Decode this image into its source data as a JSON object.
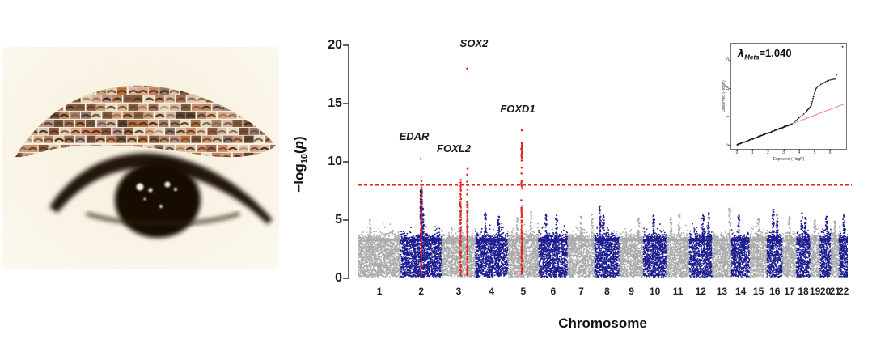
{
  "left_panel": {
    "description": "collage of many small eyebrow photos arranged in an eyebrow arc above a blurred dark human eye",
    "background": "#f9f4e6",
    "tile_palette": [
      "#c87d5e",
      "#8a5a44",
      "#d9a886",
      "#e8c9a8",
      "#b0713f",
      "#5a4632",
      "#927b62",
      "#d7b7a0",
      "#c99b7a",
      "#e5d4b5",
      "#a9846a",
      "#815b3c",
      "#b5928a",
      "#ddc2ae",
      "#9c6b50",
      "#caa17e",
      "#76513b",
      "#e0b490",
      "#b98a64",
      "#8f7a6b",
      "#cf8f6a",
      "#ead8bf"
    ],
    "brow_dark": "#3a2818",
    "eye_dark": "#1b1209",
    "highlight": "#fffdf4"
  },
  "chart_data": [
    {
      "type": "scatter",
      "variant": "manhattan",
      "xlabel": "Chromosome",
      "ylabel_parts": {
        "pre": "−log",
        "sub": "10",
        "open": "(",
        "var": "p",
        "close": ")"
      },
      "ylim": [
        0,
        20
      ],
      "yticks": [
        0,
        5,
        10,
        15,
        20
      ],
      "significance_line": 8,
      "legend": "none",
      "grid": false,
      "colors": {
        "odd": "#ababab",
        "even": "#1c1c8f",
        "signal": "#e2231a",
        "sig_line": "#e2231a",
        "axis": "#3a3a3a"
      },
      "chromosomes": [
        {
          "label": "1",
          "rel": 249,
          "shade": "odd",
          "bg_max": 4.7,
          "spikes": [
            {
              "f": 0.28,
              "top": 5.0
            }
          ]
        },
        {
          "label": "2",
          "rel": 243,
          "shade": "even",
          "bg_max": 4.7,
          "spikes": [
            {
              "f": 0.5,
              "top": 7.6,
              "n": 150
            },
            {
              "f": 0.54,
              "top": 6.0,
              "n": 40
            }
          ]
        },
        {
          "label": "3",
          "rel": 198,
          "shade": "odd",
          "bg_max": 4.6,
          "spikes": [
            {
              "f": 0.56,
              "top": 6.2,
              "n": 45
            },
            {
              "f": 0.76,
              "top": 6.3,
              "n": 45
            }
          ]
        },
        {
          "label": "4",
          "rel": 191,
          "shade": "even",
          "bg_max": 4.8,
          "spikes": [
            {
              "f": 0.3,
              "top": 5.6
            },
            {
              "f": 0.72,
              "top": 5.3
            }
          ]
        },
        {
          "label": "5",
          "rel": 181,
          "shade": "odd",
          "bg_max": 4.7,
          "spikes": [
            {
              "f": 0.3,
              "top": 5.2
            },
            {
              "f": 0.75,
              "top": 5.7
            }
          ]
        },
        {
          "label": "6",
          "rel": 171,
          "shade": "even",
          "bg_max": 4.8,
          "spikes": [
            {
              "f": 0.25,
              "top": 5.5
            },
            {
              "f": 0.62,
              "top": 5.4
            }
          ]
        },
        {
          "label": "7",
          "rel": 159,
          "shade": "odd",
          "bg_max": 4.7,
          "spikes": [
            {
              "f": 0.5,
              "top": 5.3
            },
            {
              "f": 0.9,
              "top": 5.5
            }
          ]
        },
        {
          "label": "8",
          "rel": 146,
          "shade": "even",
          "bg_max": 4.7,
          "spikes": [
            {
              "f": 0.22,
              "top": 6.2,
              "n": 45
            },
            {
              "f": 0.35,
              "top": 5.4
            }
          ]
        },
        {
          "label": "9",
          "rel": 141,
          "shade": "odd",
          "bg_max": 4.5,
          "spikes": [
            {
              "f": 0.8,
              "top": 5.1
            }
          ]
        },
        {
          "label": "10",
          "rel": 136,
          "shade": "even",
          "bg_max": 4.7,
          "spikes": [
            {
              "f": 0.45,
              "top": 5.4
            }
          ]
        },
        {
          "label": "11",
          "rel": 135,
          "shade": "odd",
          "bg_max": 4.6,
          "spikes": [
            {
              "f": 0.2,
              "top": 5.2
            },
            {
              "f": 0.55,
              "top": 5.5
            }
          ]
        },
        {
          "label": "12",
          "rel": 134,
          "shade": "even",
          "bg_max": 4.7,
          "spikes": [
            {
              "f": 0.6,
              "top": 5.4
            },
            {
              "f": 0.85,
              "top": 5.6
            }
          ]
        },
        {
          "label": "13",
          "rel": 115,
          "shade": "odd",
          "bg_max": 4.6,
          "spikes": [
            {
              "f": 0.9,
              "top": 6.0,
              "n": 35
            }
          ]
        },
        {
          "label": "14",
          "rel": 107,
          "shade": "even",
          "bg_max": 4.7,
          "spikes": [
            {
              "f": 0.4,
              "top": 5.4
            }
          ]
        },
        {
          "label": "15",
          "rel": 102,
          "shade": "odd",
          "bg_max": 4.5,
          "spikes": [
            {
              "f": 0.5,
              "top": 5.1
            }
          ]
        },
        {
          "label": "16",
          "rel": 90,
          "shade": "even",
          "bg_max": 4.7,
          "spikes": [
            {
              "f": 0.4,
              "top": 5.9,
              "n": 35
            },
            {
              "f": 0.65,
              "top": 5.5
            }
          ]
        },
        {
          "label": "17",
          "rel": 83,
          "shade": "odd",
          "bg_max": 4.6,
          "spikes": [
            {
              "f": 0.5,
              "top": 5.3
            }
          ]
        },
        {
          "label": "18",
          "rel": 80,
          "shade": "even",
          "bg_max": 4.7,
          "spikes": [
            {
              "f": 0.4,
              "top": 5.6
            },
            {
              "f": 0.65,
              "top": 5.2
            }
          ]
        },
        {
          "label": "19",
          "rel": 59,
          "shade": "odd",
          "bg_max": 4.5,
          "spikes": [
            {
              "f": 0.5,
              "top": 5.0
            }
          ]
        },
        {
          "label": "20",
          "rel": 64,
          "shade": "even",
          "bg_max": 4.6,
          "spikes": [
            {
              "f": 0.6,
              "top": 5.3
            }
          ]
        },
        {
          "label": "21",
          "rel": 48,
          "shade": "odd",
          "bg_max": 4.4,
          "spikes": [
            {
              "f": 0.5,
              "top": 4.9
            }
          ]
        },
        {
          "label": "22",
          "rel": 51,
          "shade": "even",
          "bg_max": 4.6,
          "spikes": [
            {
              "f": 0.55,
              "top": 5.4
            }
          ]
        }
      ],
      "signals": [
        {
          "chr": 2,
          "gene": "EDAR",
          "frac": 0.5,
          "dense_to": 7.4,
          "density": 60,
          "extra": [
            7.6,
            7.8,
            8.0,
            8.35,
            10.25
          ]
        },
        {
          "chr": 3,
          "gene": "FOXL2",
          "frac": 0.56,
          "dense_to": 8.3,
          "density": 48,
          "extra": [
            8.45
          ]
        },
        {
          "chr": 3,
          "gene": "SOX2",
          "frac": 0.76,
          "dense_to": 6.6,
          "density": 48,
          "extra": [
            7.2,
            7.6,
            8.0,
            8.3,
            8.9,
            9.4,
            18.0
          ]
        },
        {
          "chr": 5,
          "gene": "FOXD1",
          "frac": 0.45,
          "dense_to": 6.3,
          "density": 55,
          "extra": [
            6.7,
            7.7,
            7.9,
            8.05,
            8.2,
            8.35,
            9.0,
            9.5,
            10.1,
            10.3,
            10.45,
            10.6,
            10.7,
            10.8,
            10.9,
            11.0,
            11.1,
            11.2,
            11.3,
            11.45,
            11.6,
            12.7
          ]
        }
      ],
      "gene_labels": [
        {
          "text": "EDAR"
        },
        {
          "text": "FOXL2"
        },
        {
          "text": "SOX2"
        },
        {
          "text": "FOXD1"
        }
      ]
    },
    {
      "type": "scatter",
      "variant": "qq",
      "lambda_parts": {
        "sym": "λ",
        "sub": "Meta",
        "rest": "=1.040"
      },
      "xlabel": "Expected (−logP)",
      "ylabel": "Observed (−logP)",
      "xlim": [
        0,
        7
      ],
      "ylim": [
        0,
        18
      ],
      "xticks": [
        0,
        1,
        2,
        3,
        4,
        5,
        6
      ],
      "yticks": [
        0,
        5,
        10,
        15
      ],
      "identity_line": {
        "x0": 0,
        "y0": 0,
        "x1": 6.9,
        "y1": 7.2,
        "color": "#e88a90"
      },
      "diag_to": 3.6,
      "curve": [
        [
          3.7,
          4.05
        ],
        [
          3.8,
          4.3
        ],
        [
          3.9,
          4.5
        ],
        [
          4.0,
          4.75
        ],
        [
          4.1,
          4.95
        ],
        [
          4.2,
          5.2
        ],
        [
          4.3,
          5.45
        ],
        [
          4.4,
          5.75
        ],
        [
          4.5,
          6.0
        ],
        [
          4.55,
          6.15
        ],
        [
          4.6,
          6.3
        ],
        [
          4.65,
          6.45
        ],
        [
          4.7,
          6.6
        ],
        [
          4.75,
          6.8
        ],
        [
          4.8,
          7.0
        ],
        [
          4.82,
          7.3
        ],
        [
          4.85,
          7.6
        ],
        [
          4.88,
          7.9
        ],
        [
          4.9,
          8.2
        ],
        [
          4.93,
          8.5
        ],
        [
          4.96,
          8.8
        ],
        [
          5.0,
          9.1
        ],
        [
          5.03,
          9.4
        ],
        [
          5.06,
          9.7
        ],
        [
          5.1,
          9.95
        ],
        [
          5.15,
          10.15
        ],
        [
          5.2,
          10.3
        ],
        [
          5.3,
          10.5
        ],
        [
          5.4,
          10.65
        ],
        [
          5.5,
          10.8
        ],
        [
          5.6,
          10.95
        ],
        [
          5.7,
          11.1
        ],
        [
          5.8,
          11.25
        ],
        [
          5.9,
          11.35
        ],
        [
          6.0,
          11.45
        ],
        [
          6.1,
          11.5
        ],
        [
          6.2,
          11.55
        ],
        [
          6.3,
          11.6
        ],
        [
          6.4,
          12.3
        ],
        [
          6.8,
          17.3
        ]
      ],
      "point_color": "#151515"
    }
  ]
}
